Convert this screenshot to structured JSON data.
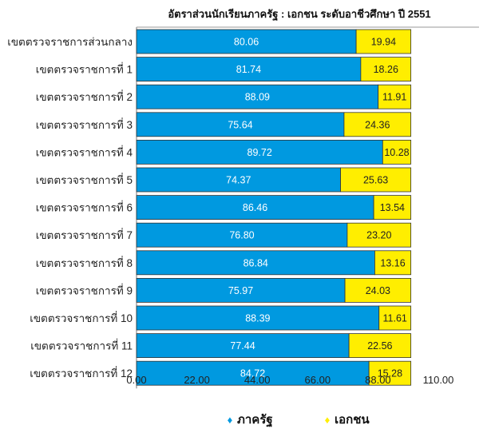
{
  "chart_data": {
    "type": "bar",
    "orientation": "horizontal",
    "stacked": true,
    "title": "อัตราส่วนนักเรียนภาครัฐ : เอกชน ระดับอาชีวศึกษา ปี 2551",
    "categories": [
      "เขตตรวจราชการส่วนกลาง",
      "เขตตรวจราชการที่ 1",
      "เขตตรวจราชการที่ 2",
      "เขตตรวจราชการที่ 3",
      "เขตตรวจราชการที่ 4",
      "เขตตรวจราชการที่ 5",
      "เขตตรวจราชการที่ 6",
      "เขตตรวจราชการที่ 7",
      "เขตตรวจราชการที่ 8",
      "เขตตรวจราชการที่ 9",
      "เขตตรวจราชการที่ 10",
      "เขตตรวจราชการที่ 11",
      "เขตตรวจราชการที่ 12"
    ],
    "series": [
      {
        "name": "ภาครัฐ",
        "color": "#0099e0",
        "label_color": "#ffffff",
        "values": [
          80.06,
          81.74,
          88.09,
          75.64,
          89.72,
          74.37,
          86.46,
          76.8,
          86.84,
          75.97,
          88.39,
          77.44,
          84.72
        ],
        "labels": [
          "80.06",
          "81.74",
          "88.09",
          "75.64",
          "89.72",
          "74.37",
          "86.46",
          "76.80",
          "86.84",
          "75.97",
          "88.39",
          "77.44",
          "84.72"
        ]
      },
      {
        "name": "เอกชน",
        "color": "#ffee00",
        "label_color": "#222222",
        "values": [
          19.94,
          18.26,
          11.91,
          24.36,
          10.28,
          25.63,
          13.54,
          23.2,
          13.16,
          24.03,
          11.61,
          22.56,
          15.28
        ],
        "labels": [
          "19.94",
          "18.26",
          "11.91",
          "24.36",
          "10.28",
          "25.63",
          "13.54",
          "23.20",
          "13.16",
          "24.03",
          "11.61",
          "22.56",
          "15.28"
        ]
      }
    ],
    "x_ticks": [
      "0.00",
      "22.00",
      "44.00",
      "66.00",
      "88.00",
      "110.00"
    ],
    "xlim": [
      0,
      110
    ],
    "grid": false,
    "legend": {
      "position": "bottom",
      "marker": "♦"
    }
  }
}
